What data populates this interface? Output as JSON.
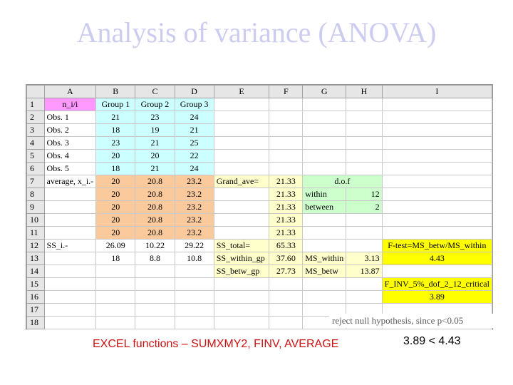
{
  "title": "Analysis of variance (ANOVA)",
  "columns": [
    "A",
    "B",
    "C",
    "D",
    "E",
    "F",
    "G",
    "H",
    "I"
  ],
  "rows": {
    "r1": {
      "num": "1",
      "a": "n_i/i",
      "b": "Group 1",
      "c": "Group 2",
      "d": "Group 3"
    },
    "r2": {
      "num": "2",
      "a": "Obs. 1",
      "b": "21",
      "c": "23",
      "d": "24"
    },
    "r3": {
      "num": "3",
      "a": "Obs. 2",
      "b": "18",
      "c": "19",
      "d": "21"
    },
    "r4": {
      "num": "4",
      "a": "Obs. 3",
      "b": "23",
      "c": "21",
      "d": "25"
    },
    "r5": {
      "num": "5",
      "a": "Obs. 4",
      "b": "20",
      "c": "20",
      "d": "22"
    },
    "r6": {
      "num": "6",
      "a": "Obs. 5",
      "b": "18",
      "c": "21",
      "d": "24"
    },
    "r7": {
      "num": "7",
      "a": "average, x_i.-",
      "b": "20",
      "c": "20.8",
      "d": "23.2",
      "e": "Grand_ave=",
      "f": "21.33",
      "gh": "d.o.f"
    },
    "r8": {
      "num": "8",
      "b": "20",
      "c": "20.8",
      "d": "23.2",
      "f": "21.33",
      "g": "within",
      "h": "12"
    },
    "r9": {
      "num": "9",
      "b": "20",
      "c": "20.8",
      "d": "23.2",
      "f": "21.33",
      "g": "between",
      "h": "2"
    },
    "r10": {
      "num": "10",
      "b": "20",
      "c": "20.8",
      "d": "23.2",
      "f": "21.33"
    },
    "r11": {
      "num": "11",
      "b": "20",
      "c": "20.8",
      "d": "23.2",
      "f": "21.33"
    },
    "r12": {
      "num": "12",
      "a": "SS_i.-",
      "b": "26.09",
      "c": "10.22",
      "d": "29.22",
      "e": "SS_total=",
      "f": "65.33",
      "i": "F-test=MS_betw/MS_within"
    },
    "r13": {
      "num": "13",
      "b": "18",
      "c": "8.8",
      "d": "10.8",
      "e": "SS_within_gp",
      "f": "37.60",
      "g": "MS_within",
      "h": "3.13",
      "i": "4.43"
    },
    "r14": {
      "num": "14",
      "e": "SS_betw_gp",
      "f": "27.73",
      "g": "MS_betw",
      "h": "13.87"
    },
    "r15": {
      "num": "15",
      "i": "F_INV_5%_dof_2_12_critical"
    },
    "r16": {
      "num": "16",
      "i": "3.89"
    },
    "r17": {
      "num": "17"
    },
    "r18": {
      "num": "18"
    }
  },
  "reject_note": "reject null hypothesis, since p<0.05",
  "excel_note": "EXCEL functions – SUMXMY2, FINV, AVERAGE",
  "comparison": "3.89 < 4.43",
  "colors": {
    "title": "#ccccf0",
    "header_pink": "#ff99ff",
    "data_cyan": "#ccffff",
    "average_orange": "#fac99c",
    "grand_cream": "#ffffcc",
    "dof_green": "#ccffcc",
    "result_yellow": "#ffff00",
    "note_red": "#cc1111"
  }
}
